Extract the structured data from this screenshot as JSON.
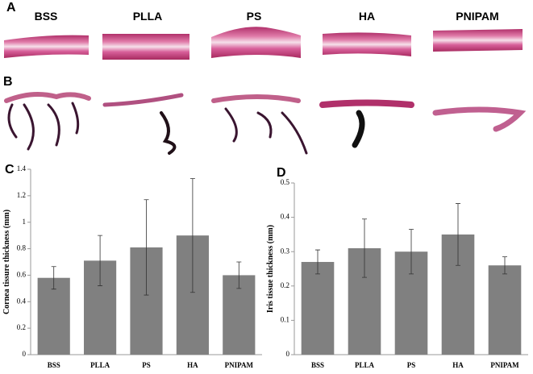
{
  "figure": {
    "panel_a": {
      "label": "A",
      "samples": [
        "BSS",
        "PLLA",
        "PS",
        "HA",
        "PNIPAM"
      ]
    },
    "panel_b": {
      "label": "B"
    }
  },
  "chart_data": [
    {
      "type": "bar",
      "label": "C",
      "y_label": "Cornea tissure thickness (mm)",
      "categories": [
        "BSS",
        "PLLA",
        "PS",
        "HA",
        "PNIPAM"
      ],
      "values": [
        0.58,
        0.71,
        0.81,
        0.9,
        0.6
      ],
      "errors": [
        0.085,
        0.19,
        0.36,
        0.43,
        0.1
      ],
      "color": "#808080",
      "ylim": [
        0,
        1.4
      ],
      "yticks": [
        0,
        0.2,
        0.4,
        0.6,
        0.8,
        1,
        1.2,
        1.4
      ]
    },
    {
      "type": "bar",
      "label": "D",
      "y_label": "Iris tissue thickness (mm)",
      "categories": [
        "BSS",
        "PLLA",
        "PS",
        "HA",
        "PNIPAM"
      ],
      "values": [
        0.27,
        0.31,
        0.3,
        0.35,
        0.26
      ],
      "errors": [
        0.035,
        0.085,
        0.065,
        0.09,
        0.025
      ],
      "color": "#808080",
      "ylim": [
        0,
        0.5
      ],
      "yticks": [
        0,
        0.1,
        0.2,
        0.3,
        0.4,
        0.5
      ]
    }
  ]
}
